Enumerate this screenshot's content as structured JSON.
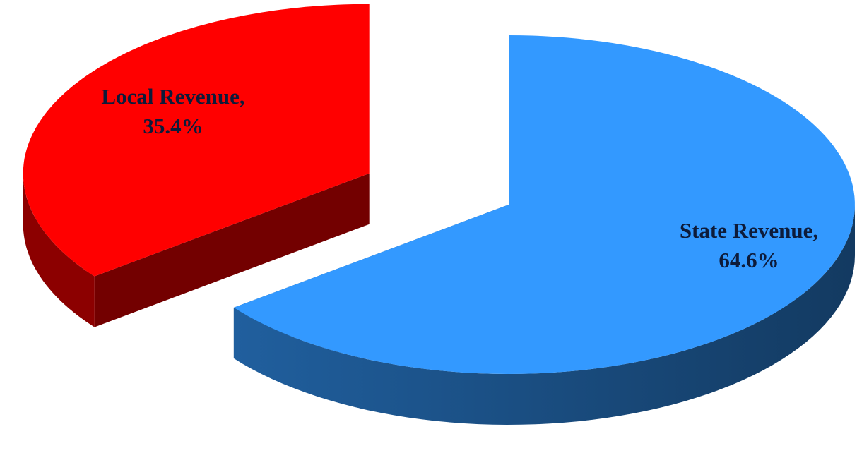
{
  "chart_data": {
    "type": "pie3d",
    "categories": [
      "Local Revenue,",
      "State Revenue,"
    ],
    "values": [
      35.4,
      64.6
    ],
    "value_labels": [
      "35.4%",
      "64.6%"
    ],
    "colors": [
      "#ff0000",
      "#3399ff"
    ]
  }
}
